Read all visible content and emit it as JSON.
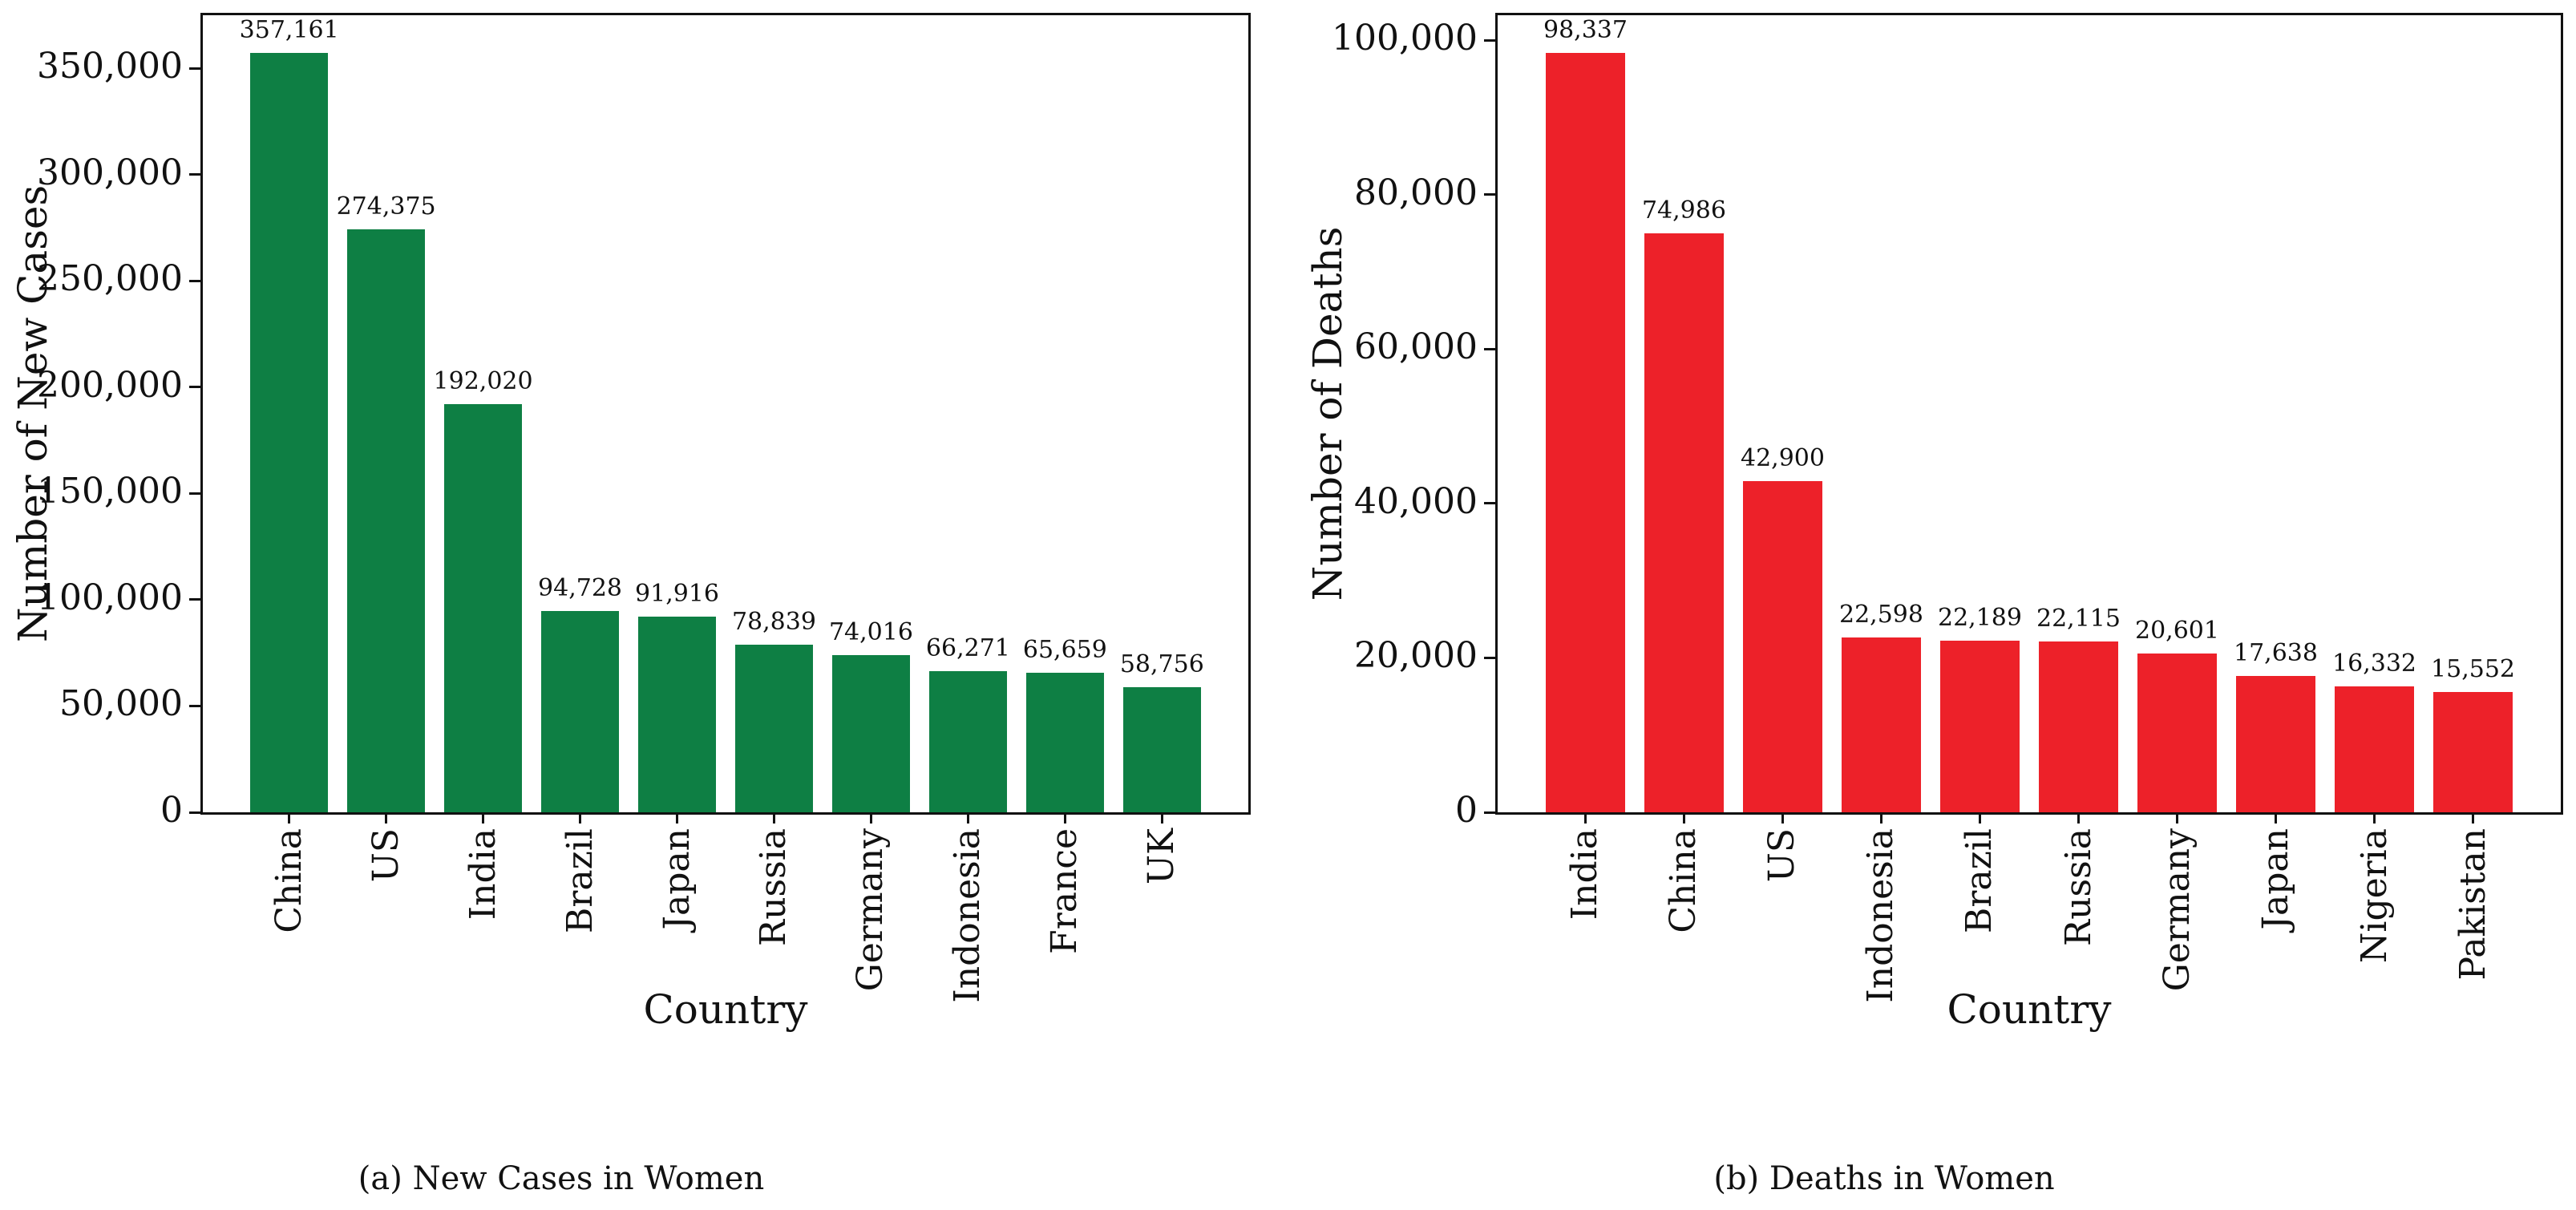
{
  "figure": {
    "background": "#ffffff",
    "text_color": "#111111",
    "spine_color": "#111111"
  },
  "chart_data": [
    {
      "type": "bar",
      "caption": "(a) New Cases in Women",
      "xlabel": "Country",
      "ylabel": "Number of New Cases",
      "categories": [
        "China",
        "US",
        "India",
        "Brazil",
        "Japan",
        "Russia",
        "Germany",
        "Indonesia",
        "France",
        "UK"
      ],
      "values": [
        357161,
        274375,
        192020,
        94728,
        91916,
        78839,
        74016,
        66271,
        65659,
        58756
      ],
      "value_labels": [
        "357,161",
        "274,375",
        "192,020",
        "94,728",
        "91,916",
        "78,839",
        "74,016",
        "66,271",
        "65,659",
        "58,756"
      ],
      "bar_color": "#0e7f44",
      "ylim": [
        0,
        375019
      ],
      "yticks": [
        0,
        50000,
        100000,
        150000,
        200000,
        250000,
        300000,
        350000
      ],
      "ytick_labels": [
        "0",
        "50,000",
        "100,000",
        "150,000",
        "200,000",
        "250,000",
        "300,000",
        "350,000"
      ],
      "grid": false,
      "legend": "none"
    },
    {
      "type": "bar",
      "caption": "(b) Deaths in Women",
      "xlabel": "Country",
      "ylabel": "Number of Deaths",
      "categories": [
        "India",
        "China",
        "US",
        "Indonesia",
        "Brazil",
        "Russia",
        "Germany",
        "Japan",
        "Nigeria",
        "Pakistan"
      ],
      "values": [
        98337,
        74986,
        42900,
        22598,
        22189,
        22115,
        20601,
        17638,
        16332,
        15552
      ],
      "value_labels": [
        "98,337",
        "74,986",
        "42,900",
        "22,598",
        "22,189",
        "22,115",
        "20,601",
        "17,638",
        "16,332",
        "15,552"
      ],
      "bar_color": "#ed2129",
      "ylim": [
        0,
        103254
      ],
      "yticks": [
        0,
        20000,
        40000,
        60000,
        80000,
        100000
      ],
      "ytick_labels": [
        "0",
        "20,000",
        "40,000",
        "60,000",
        "80,000",
        "100,000"
      ],
      "grid": false,
      "legend": "none"
    }
  ]
}
